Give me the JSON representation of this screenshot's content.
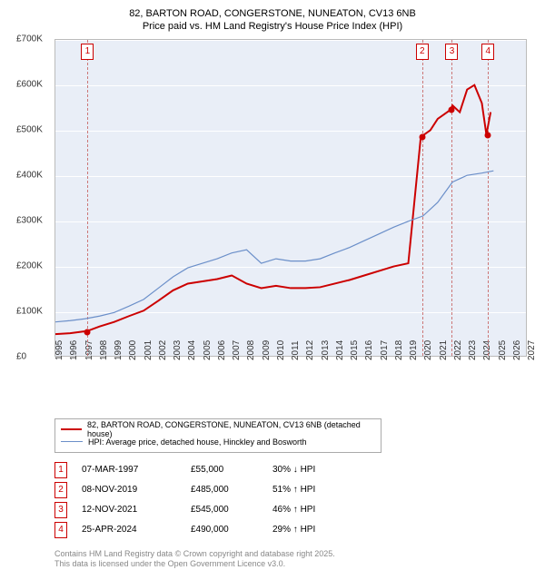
{
  "title_line1": "82, BARTON ROAD, CONGERSTONE, NUNEATON, CV13 6NB",
  "title_line2": "Price paid vs. HM Land Registry's House Price Index (HPI)",
  "chart": {
    "type": "line",
    "background_color": "#e9eef7",
    "grid_color": "#ffffff",
    "xlim": [
      1995,
      2027
    ],
    "ylim": [
      0,
      700000
    ],
    "ytick_step": 100000,
    "yticks": [
      "£0",
      "£100K",
      "£200K",
      "£300K",
      "£400K",
      "£500K",
      "£600K",
      "£700K"
    ],
    "xticks": [
      "1995",
      "1996",
      "1997",
      "1998",
      "1999",
      "2000",
      "2001",
      "2002",
      "2003",
      "2004",
      "2005",
      "2006",
      "2007",
      "2008",
      "2009",
      "2010",
      "2011",
      "2012",
      "2013",
      "2014",
      "2015",
      "2016",
      "2017",
      "2018",
      "2019",
      "2020",
      "2021",
      "2022",
      "2023",
      "2024",
      "2025",
      "2026",
      "2027"
    ],
    "series": [
      {
        "name": "property",
        "color": "#cc0000",
        "width": 2,
        "label": "82, BARTON ROAD, CONGERSTONE, NUNEATON, CV13 6NB (detached house)",
        "data": [
          [
            1995,
            48000
          ],
          [
            1996,
            50000
          ],
          [
            1997.18,
            55000
          ],
          [
            1998,
            65000
          ],
          [
            1999,
            75000
          ],
          [
            2000,
            88000
          ],
          [
            2001,
            100000
          ],
          [
            2002,
            122000
          ],
          [
            2003,
            145000
          ],
          [
            2004,
            160000
          ],
          [
            2005,
            165000
          ],
          [
            2006,
            170000
          ],
          [
            2007,
            178000
          ],
          [
            2008,
            160000
          ],
          [
            2009,
            150000
          ],
          [
            2010,
            155000
          ],
          [
            2011,
            150000
          ],
          [
            2012,
            150000
          ],
          [
            2013,
            152000
          ],
          [
            2014,
            160000
          ],
          [
            2015,
            168000
          ],
          [
            2016,
            178000
          ],
          [
            2017,
            188000
          ],
          [
            2018,
            198000
          ],
          [
            2019,
            205000
          ],
          [
            2019.85,
            485000
          ],
          [
            2020.5,
            500000
          ],
          [
            2021,
            525000
          ],
          [
            2021.86,
            545000
          ],
          [
            2022,
            555000
          ],
          [
            2022.5,
            540000
          ],
          [
            2023,
            590000
          ],
          [
            2023.5,
            600000
          ],
          [
            2024,
            560000
          ],
          [
            2024.31,
            490000
          ],
          [
            2024.6,
            540000
          ]
        ]
      },
      {
        "name": "hpi",
        "color": "#6b8fc9",
        "width": 1.2,
        "label": "HPI: Average price, detached house, Hinckley and Bosworth",
        "data": [
          [
            1995,
            75000
          ],
          [
            1996,
            78000
          ],
          [
            1997,
            82000
          ],
          [
            1998,
            88000
          ],
          [
            1999,
            96000
          ],
          [
            2000,
            110000
          ],
          [
            2001,
            125000
          ],
          [
            2002,
            150000
          ],
          [
            2003,
            175000
          ],
          [
            2004,
            195000
          ],
          [
            2005,
            205000
          ],
          [
            2006,
            215000
          ],
          [
            2007,
            228000
          ],
          [
            2008,
            235000
          ],
          [
            2009,
            205000
          ],
          [
            2010,
            215000
          ],
          [
            2011,
            210000
          ],
          [
            2012,
            210000
          ],
          [
            2013,
            215000
          ],
          [
            2014,
            228000
          ],
          [
            2015,
            240000
          ],
          [
            2016,
            255000
          ],
          [
            2017,
            270000
          ],
          [
            2018,
            285000
          ],
          [
            2019,
            298000
          ],
          [
            2020,
            310000
          ],
          [
            2021,
            340000
          ],
          [
            2022,
            385000
          ],
          [
            2023,
            400000
          ],
          [
            2024,
            405000
          ],
          [
            2024.8,
            410000
          ]
        ]
      }
    ],
    "markers": [
      {
        "n": "1",
        "x": 1997.18,
        "y": 55000,
        "box_top": true
      },
      {
        "n": "2",
        "x": 2019.85,
        "y": 485000,
        "box_top": true
      },
      {
        "n": "3",
        "x": 2021.86,
        "y": 545000,
        "box_top": true
      },
      {
        "n": "4",
        "x": 2024.31,
        "y": 490000,
        "box_top": true
      }
    ],
    "title_fontsize": 11,
    "label_fontsize": 10
  },
  "legend": {
    "row1_label": "82, BARTON ROAD, CONGERSTONE, NUNEATON, CV13 6NB (detached house)",
    "row2_label": "HPI: Average price, detached house, Hinckley and Bosworth"
  },
  "table": {
    "rows": [
      {
        "n": "1",
        "date": "07-MAR-1997",
        "price": "£55,000",
        "delta": "30% ↓ HPI"
      },
      {
        "n": "2",
        "date": "08-NOV-2019",
        "price": "£485,000",
        "delta": "51% ↑ HPI"
      },
      {
        "n": "3",
        "date": "12-NOV-2021",
        "price": "£545,000",
        "delta": "46% ↑ HPI"
      },
      {
        "n": "4",
        "date": "25-APR-2024",
        "price": "£490,000",
        "delta": "29% ↑ HPI"
      }
    ]
  },
  "footer_line1": "Contains HM Land Registry data © Crown copyright and database right 2025.",
  "footer_line2": "This data is licensed under the Open Government Licence v3.0."
}
